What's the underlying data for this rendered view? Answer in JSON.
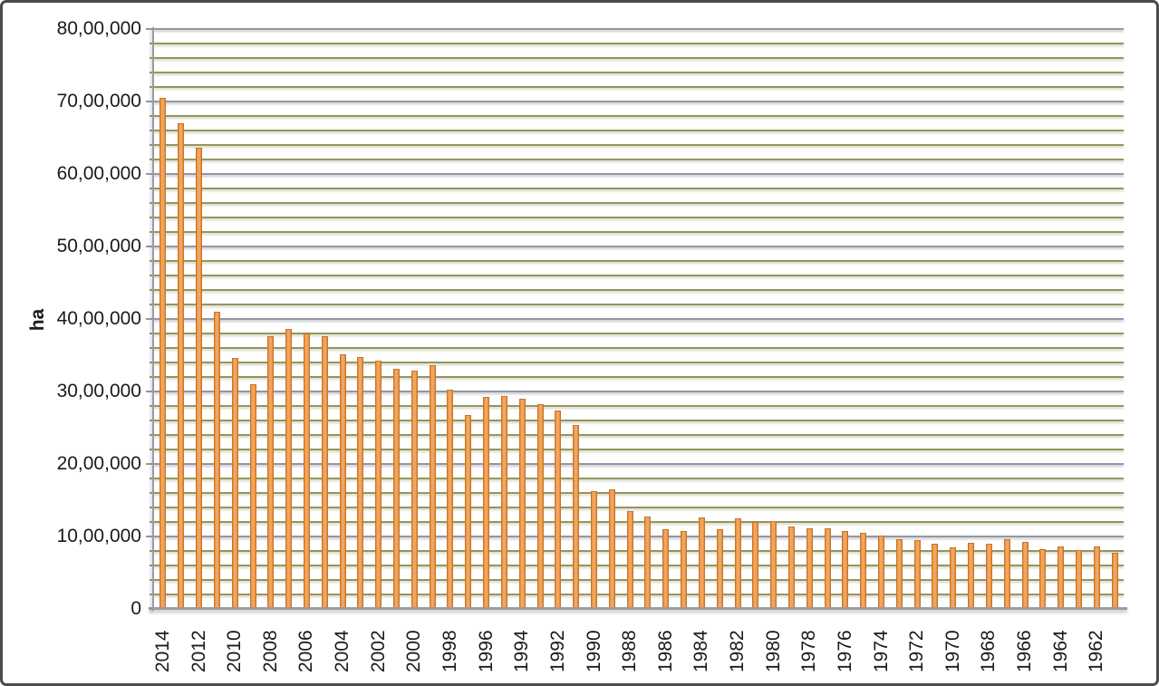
{
  "frame": {
    "border_color": "#4b4b4b",
    "background": "#ffffff"
  },
  "chart_data": {
    "type": "bar",
    "title": "",
    "xlabel": "",
    "ylabel": "ha",
    "ylim": [
      0,
      8000000
    ],
    "y_major_unit": 1000000,
    "y_minor_unit": 200000,
    "y_tick_labels": [
      "0",
      "10,00,000",
      "20,00,000",
      "30,00,000",
      "40,00,000",
      "50,00,000",
      "60,00,000",
      "70,00,000",
      "80,00,000"
    ],
    "x_label_every": 2,
    "grid": true,
    "legend_position": "none",
    "categories": [
      2014,
      2013,
      2012,
      2011,
      2010,
      2009,
      2008,
      2007,
      2006,
      2005,
      2004,
      2003,
      2002,
      2001,
      2000,
      1999,
      1998,
      1997,
      1996,
      1995,
      1994,
      1993,
      1992,
      1991,
      1990,
      1989,
      1988,
      1987,
      1986,
      1985,
      1984,
      1983,
      1982,
      1981,
      1980,
      1979,
      1978,
      1977,
      1976,
      1975,
      1974,
      1973,
      1972,
      1971,
      1970,
      1969,
      1968,
      1967,
      1966,
      1965,
      1964,
      1963,
      1962,
      1961
    ],
    "values": [
      7050000,
      6700000,
      6360000,
      4100000,
      3460000,
      3100000,
      3760000,
      3860000,
      3800000,
      3760000,
      3510000,
      3480000,
      3430000,
      3310000,
      3290000,
      3360000,
      3030000,
      2680000,
      2930000,
      2940000,
      2900000,
      2830000,
      2740000,
      2540000,
      1630000,
      1650000,
      1350000,
      1280000,
      1100000,
      1070000,
      1260000,
      1100000,
      1250000,
      1200000,
      1210000,
      1140000,
      1110000,
      1110000,
      1080000,
      1050000,
      1010000,
      960000,
      950000,
      900000,
      850000,
      910000,
      900000,
      960000,
      920000,
      820000,
      860000,
      810000,
      860000,
      780000
    ],
    "colors": {
      "bar_fill": "#F4A65F",
      "bar_edge": "#C4762A",
      "major_grid": "#9496A0",
      "minor_grid": "#95955C",
      "axis": "#9A9AA3",
      "text": "#1A1A1A"
    }
  }
}
